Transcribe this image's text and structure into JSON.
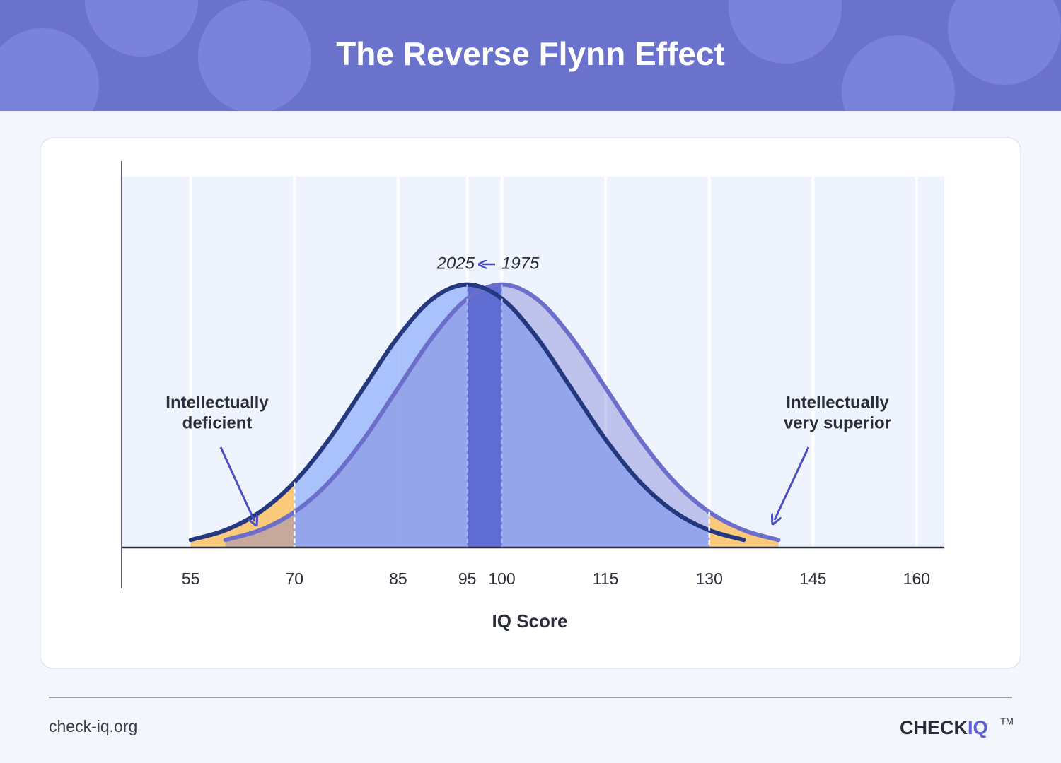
{
  "chart_data": {
    "type": "area",
    "title": "The Reverse Flynn Effect",
    "xlabel": "IQ Score",
    "xlim": [
      45,
      164
    ],
    "xticks": [
      55,
      70,
      85,
      95,
      100,
      115,
      130,
      145,
      160
    ],
    "ylim": [
      0,
      1.41
    ],
    "grid": true,
    "band": [
      95,
      100
    ],
    "band_color": "#5f6dd3",
    "cutoffs": [
      70,
      130
    ],
    "cutoff_color": "#fbc97a",
    "series": [
      {
        "name": "1975",
        "color": "#6b6fcb",
        "fill": "rgba(112,118,212,0.38)",
        "x": [
          60,
          65,
          70,
          75,
          80,
          85,
          90,
          95,
          100,
          105,
          110,
          115,
          120,
          125,
          130,
          135,
          140
        ],
        "values": [
          0.029,
          0.066,
          0.135,
          0.249,
          0.411,
          0.607,
          0.801,
          0.946,
          1,
          0.946,
          0.801,
          0.607,
          0.411,
          0.249,
          0.135,
          0.066,
          0.029
        ]
      },
      {
        "name": "2025",
        "color": "#24387f",
        "fill": "rgba(158,184,250,0.85)",
        "x": [
          55,
          60,
          65,
          70,
          75,
          80,
          85,
          90,
          95,
          100,
          105,
          110,
          115,
          120,
          125,
          130,
          135
        ],
        "values": [
          0.029,
          0.066,
          0.135,
          0.249,
          0.411,
          0.607,
          0.801,
          0.946,
          1,
          0.946,
          0.801,
          0.607,
          0.411,
          0.249,
          0.135,
          0.066,
          0.029
        ]
      }
    ],
    "annotations": [
      {
        "lines": [
          "Intellectually",
          "deficient"
        ]
      },
      {
        "lines": [
          "Intellectually",
          "very superior"
        ]
      }
    ]
  },
  "footer": {
    "source": "check-iq.org",
    "logo": [
      "CHECK",
      "IQ"
    ],
    "trademark": "TM"
  }
}
